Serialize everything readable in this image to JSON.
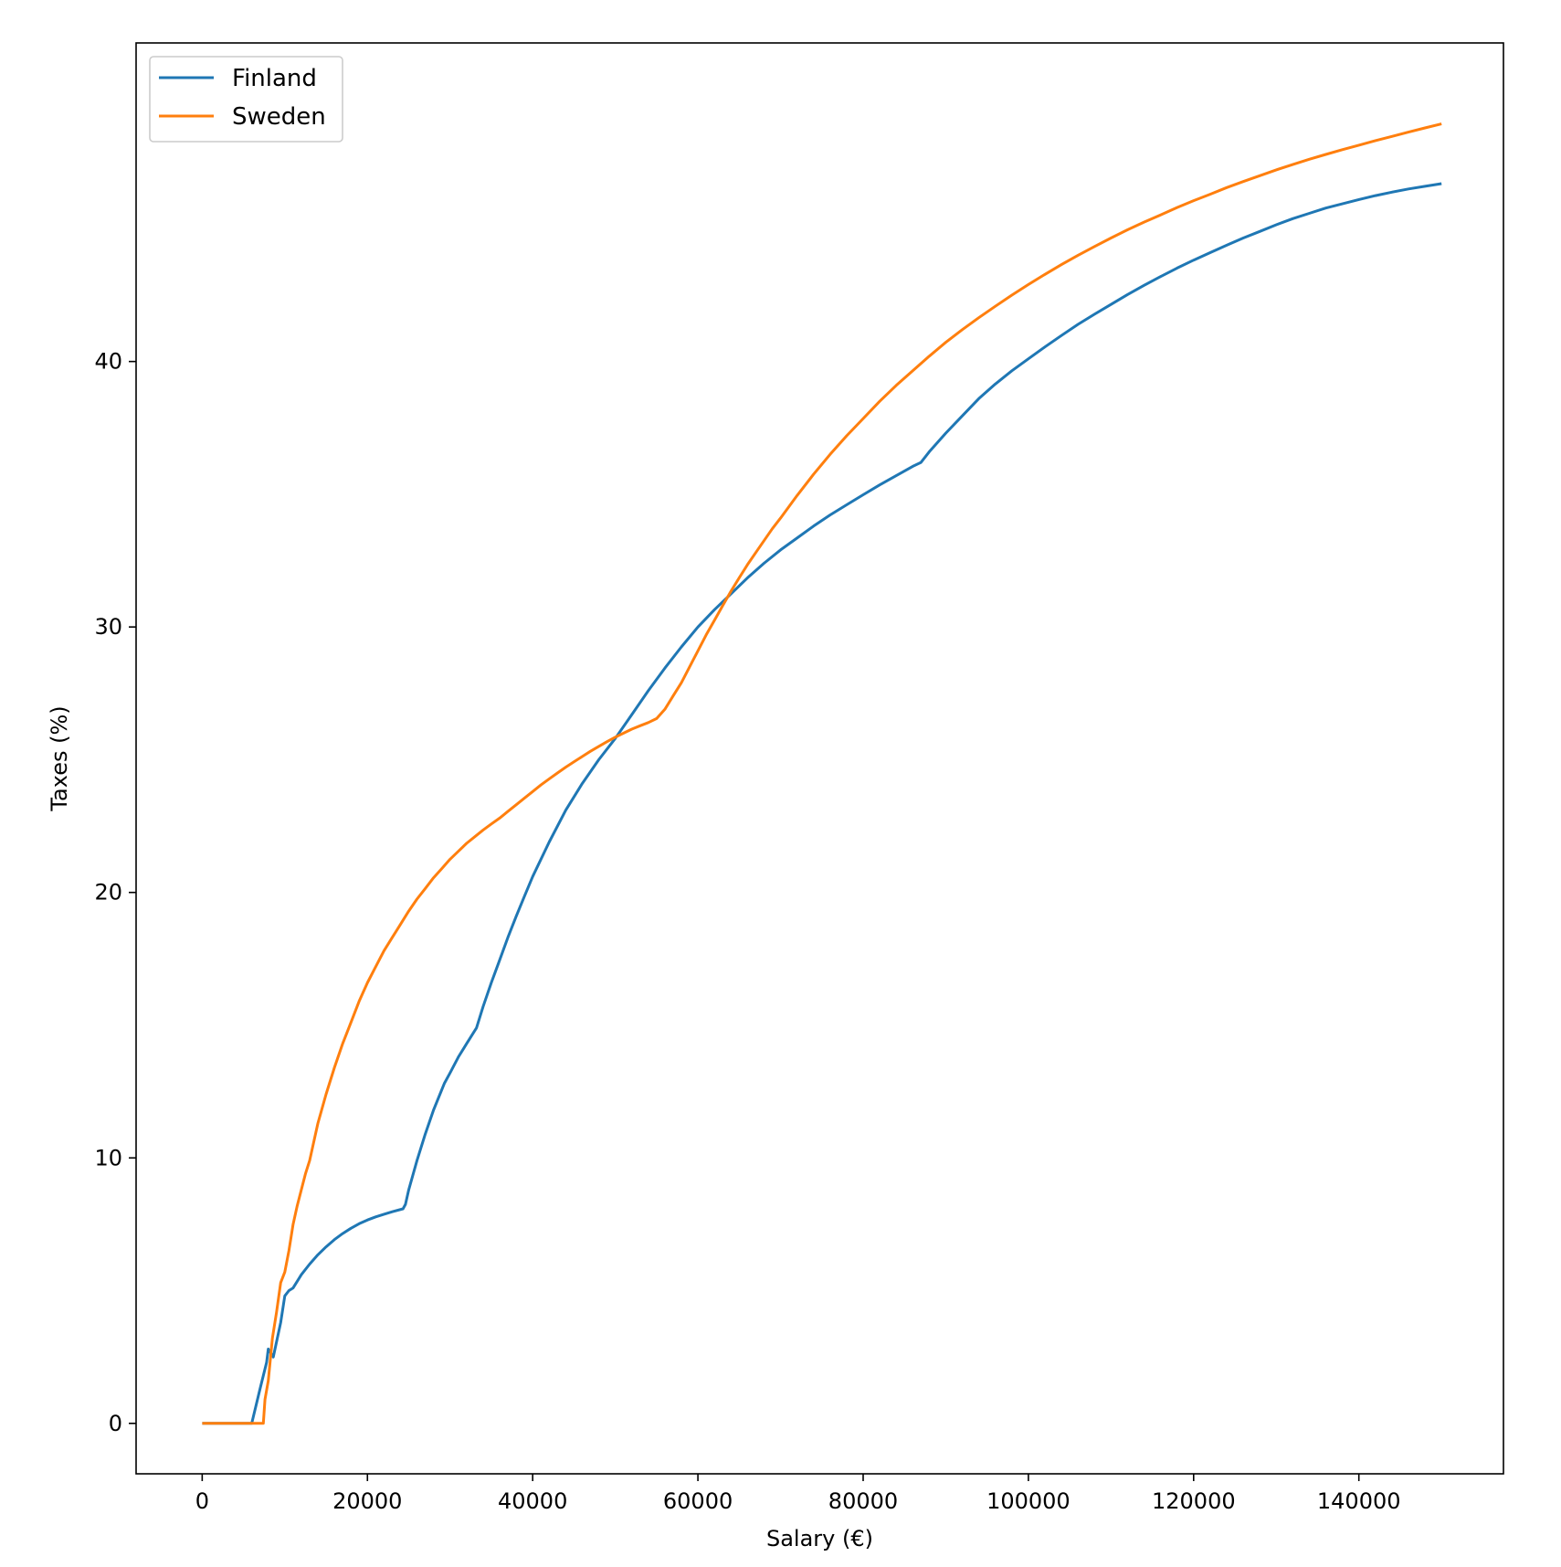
{
  "chart_data": {
    "type": "line",
    "xlabel": "Salary (€)",
    "ylabel": "Taxes (%)",
    "xlim": [
      -8000,
      157500
    ],
    "ylim": [
      -1.9,
      52.0
    ],
    "xticks": [
      0,
      20000,
      40000,
      60000,
      80000,
      100000,
      120000,
      140000
    ],
    "yticks": [
      0,
      10,
      20,
      30,
      40
    ],
    "legend": "top-left",
    "grid": false,
    "series": [
      {
        "name": "Finland",
        "color": "#1f77b4",
        "x": [
          0,
          6000,
          7000,
          7800,
          8000,
          8600,
          9500,
          10000,
          10500,
          11000,
          12000,
          13000,
          14000,
          15000,
          16000,
          17000,
          18000,
          19000,
          20000,
          21000,
          22000,
          23000,
          24300,
          24600,
          25000,
          26000,
          27000,
          28000,
          29300,
          30000,
          31000,
          32000,
          33200,
          34000,
          35000,
          36000,
          37000,
          38000,
          39000,
          40000,
          42000,
          44000,
          46000,
          48000,
          50000,
          52000,
          54000,
          56000,
          58000,
          60000,
          62000,
          64000,
          66000,
          68000,
          70000,
          72000,
          74000,
          76000,
          78000,
          80000,
          82000,
          84000,
          86000,
          87000,
          88000,
          90000,
          92000,
          94000,
          96000,
          98000,
          100000,
          102000,
          104000,
          106000,
          108000,
          110000,
          112000,
          114000,
          116000,
          118000,
          120000,
          122000,
          124000,
          126000,
          128000,
          130000,
          132000,
          134000,
          136000,
          138000,
          140000,
          142000,
          144000,
          146000,
          148000,
          150000
        ],
        "y": [
          0,
          0,
          1.3,
          2.3,
          2.8,
          2.5,
          3.8,
          4.8,
          5.0,
          5.1,
          5.6,
          6.0,
          6.35,
          6.65,
          6.92,
          7.15,
          7.35,
          7.52,
          7.66,
          7.78,
          7.88,
          7.97,
          8.08,
          8.25,
          8.8,
          9.9,
          10.9,
          11.8,
          12.8,
          13.2,
          13.8,
          14.3,
          14.9,
          15.7,
          16.6,
          17.45,
          18.3,
          19.1,
          19.85,
          20.6,
          21.9,
          23.1,
          24.1,
          25.0,
          25.8,
          26.7,
          27.6,
          28.45,
          29.25,
          30.0,
          30.65,
          31.25,
          31.85,
          32.4,
          32.9,
          33.35,
          33.8,
          34.22,
          34.6,
          34.98,
          35.35,
          35.7,
          36.05,
          36.2,
          36.6,
          37.3,
          37.95,
          38.6,
          39.15,
          39.65,
          40.1,
          40.55,
          40.98,
          41.4,
          41.78,
          42.15,
          42.52,
          42.87,
          43.2,
          43.52,
          43.82,
          44.1,
          44.38,
          44.65,
          44.9,
          45.15,
          45.38,
          45.58,
          45.78,
          45.94,
          46.1,
          46.25,
          46.38,
          46.5,
          46.6,
          46.7
        ]
      },
      {
        "name": "Sweden",
        "color": "#ff7f0e",
        "x": [
          0,
          7400,
          7600,
          8000,
          8500,
          9000,
          9500,
          10000,
          10500,
          11000,
          11500,
          12000,
          12500,
          13000,
          13500,
          14000,
          15000,
          16000,
          17000,
          18000,
          19000,
          20000,
          21000,
          22000,
          23000,
          24000,
          25000,
          26000,
          27000,
          28000,
          29000,
          30000,
          31000,
          32000,
          33000,
          34000,
          35000,
          36000,
          37000,
          38000,
          39000,
          40000,
          41000,
          42000,
          43000,
          44000,
          45000,
          46000,
          47000,
          48000,
          49000,
          50000,
          51000,
          52000,
          53000,
          54000,
          55000,
          56000,
          57000,
          58000,
          59000,
          60000,
          61000,
          62000,
          63000,
          64000,
          65000,
          66000,
          67000,
          68000,
          69000,
          70000,
          72000,
          74000,
          76000,
          78000,
          80000,
          82000,
          84000,
          86000,
          88000,
          90000,
          92000,
          94000,
          96000,
          98000,
          100000,
          102000,
          104000,
          106000,
          108000,
          110000,
          112000,
          114000,
          116000,
          118000,
          120000,
          122000,
          124000,
          126000,
          128000,
          130000,
          132000,
          134000,
          136000,
          138000,
          140000,
          142000,
          144000,
          146000,
          148000,
          150000
        ],
        "y": [
          0,
          0,
          0.9,
          1.6,
          3.2,
          4.2,
          5.3,
          5.7,
          6.5,
          7.5,
          8.2,
          8.8,
          9.4,
          9.9,
          10.6,
          11.3,
          12.4,
          13.4,
          14.3,
          15.1,
          15.9,
          16.6,
          17.2,
          17.8,
          18.3,
          18.8,
          19.3,
          19.75,
          20.15,
          20.55,
          20.9,
          21.25,
          21.55,
          21.85,
          22.1,
          22.35,
          22.58,
          22.8,
          23.05,
          23.3,
          23.55,
          23.8,
          24.05,
          24.28,
          24.5,
          24.72,
          24.92,
          25.12,
          25.32,
          25.5,
          25.68,
          25.85,
          26.0,
          26.15,
          26.28,
          26.4,
          26.55,
          26.9,
          27.4,
          27.9,
          28.5,
          29.1,
          29.7,
          30.25,
          30.8,
          31.35,
          31.85,
          32.35,
          32.8,
          33.25,
          33.7,
          34.1,
          34.95,
          35.75,
          36.5,
          37.2,
          37.85,
          38.5,
          39.1,
          39.65,
          40.2,
          40.72,
          41.2,
          41.65,
          42.08,
          42.5,
          42.9,
          43.28,
          43.65,
          44.0,
          44.33,
          44.65,
          44.96,
          45.25,
          45.52,
          45.8,
          46.06,
          46.3,
          46.55,
          46.78,
          47.0,
          47.22,
          47.42,
          47.62,
          47.8,
          47.98,
          48.15,
          48.32,
          48.48,
          48.64,
          48.8,
          48.95
        ]
      }
    ]
  }
}
